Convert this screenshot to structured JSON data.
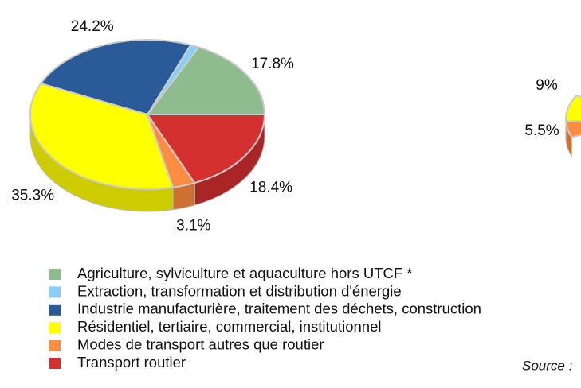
{
  "chart_data": [
    {
      "type": "pie3d",
      "categories": [
        "Agriculture, sylviculture et aquaculture hors UTCF *",
        "Extraction, transformation et distribution d'énergie",
        "Industrie manufacturière, traitement des déchets, construction",
        "Résidentiel, tertiaire, commercial, institutionnel",
        "Modes de transport autres que routier",
        "Transport routier"
      ],
      "values": [
        17.8,
        1.2,
        24.2,
        35.3,
        3.1,
        18.4
      ],
      "value_labels": [
        "17.8%",
        null,
        "24.2%",
        "35.3%",
        "3.1%",
        "18.4%"
      ],
      "colors": [
        "#8fbc8f",
        "#87cefa",
        "#2a5a97",
        "#ffff00",
        "#ff8c40",
        "#d43030"
      ],
      "legend": "bottom"
    },
    {
      "type": "pie3d",
      "values": [
        9,
        5.5
      ],
      "value_labels": [
        "9%",
        "5.5%"
      ],
      "colors": [
        "#ffff00",
        "#ff8c40"
      ]
    }
  ],
  "source": "Source :"
}
